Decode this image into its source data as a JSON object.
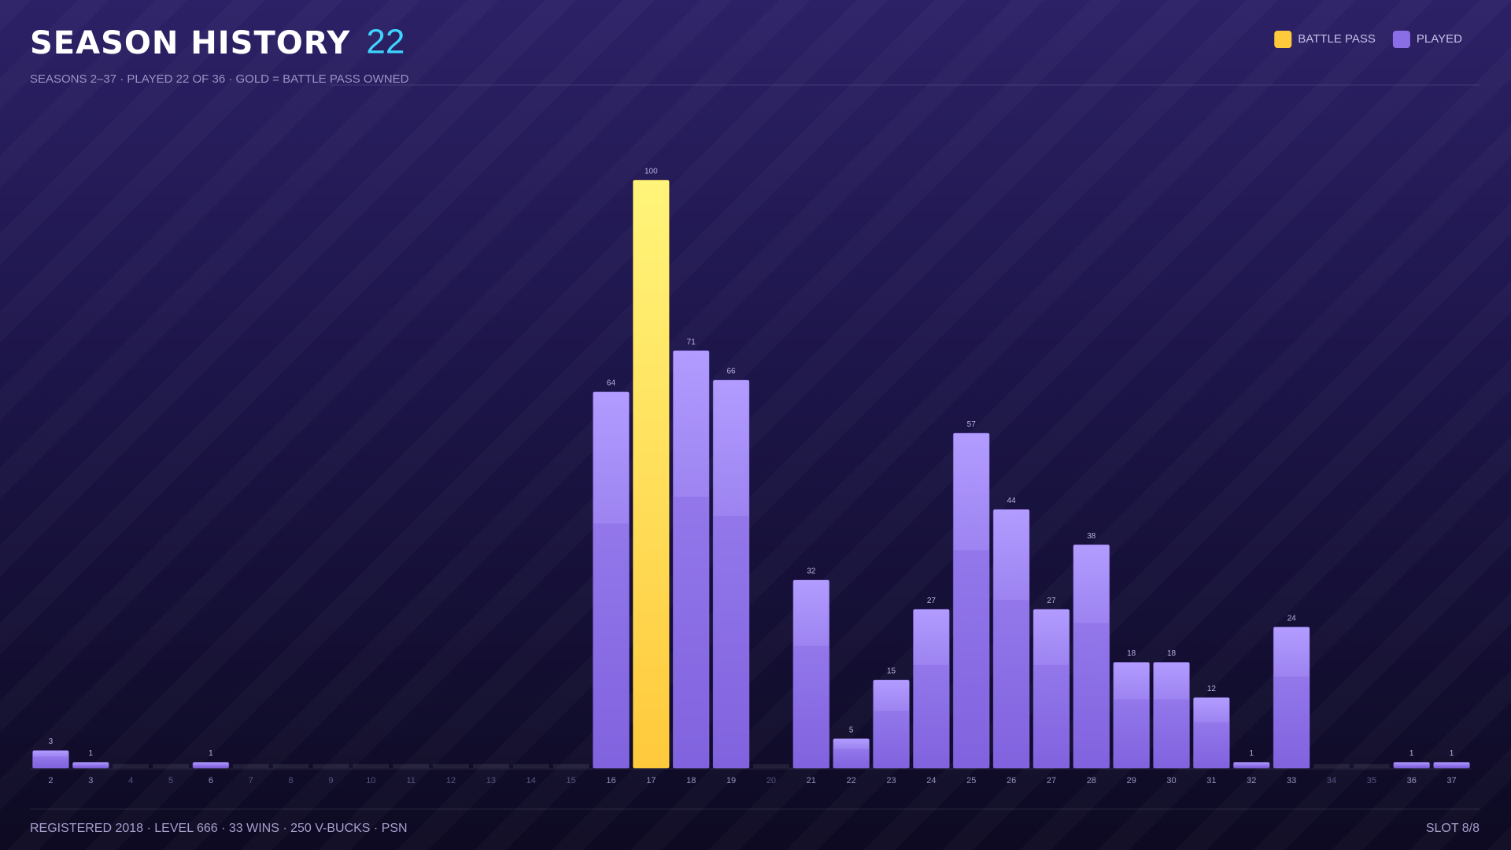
{
  "chart_data": {
    "type": "bar",
    "title": "SEASON HISTORY",
    "count": "22",
    "subtitle": "SEASONS 2–37 · PLAYED 22 OF 36 · GOLD = BATTLE PASS OWNED",
    "legend": [
      {
        "name": "BATTLE PASS",
        "color": "#ffc93c"
      },
      {
        "name": "PLAYED",
        "color": "#8a6ee6"
      }
    ],
    "categories": [
      "2",
      "3",
      "4",
      "5",
      "6",
      "7",
      "8",
      "9",
      "10",
      "11",
      "12",
      "13",
      "14",
      "15",
      "16",
      "17",
      "18",
      "19",
      "20",
      "21",
      "22",
      "23",
      "24",
      "25",
      "26",
      "27",
      "28",
      "29",
      "30",
      "31",
      "32",
      "33",
      "34",
      "35",
      "36",
      "37"
    ],
    "values": [
      3,
      1,
      null,
      null,
      1,
      null,
      null,
      null,
      null,
      null,
      null,
      null,
      null,
      null,
      64,
      100,
      71,
      66,
      null,
      32,
      5,
      15,
      27,
      57,
      44,
      27,
      38,
      18,
      18,
      12,
      1,
      24,
      null,
      null,
      1,
      1
    ],
    "battle_pass": [
      false,
      false,
      false,
      false,
      false,
      false,
      false,
      false,
      false,
      false,
      false,
      false,
      false,
      false,
      false,
      true,
      false,
      false,
      false,
      false,
      false,
      false,
      false,
      false,
      false,
      false,
      false,
      false,
      false,
      false,
      false,
      false,
      false,
      false,
      false,
      false
    ],
    "ylim": [
      0,
      100
    ],
    "footer": "REGISTERED 2018 · LEVEL 666 · 33 WINS · 250 V-BUCKS · PSN",
    "slot": "SLOT 8/8"
  }
}
